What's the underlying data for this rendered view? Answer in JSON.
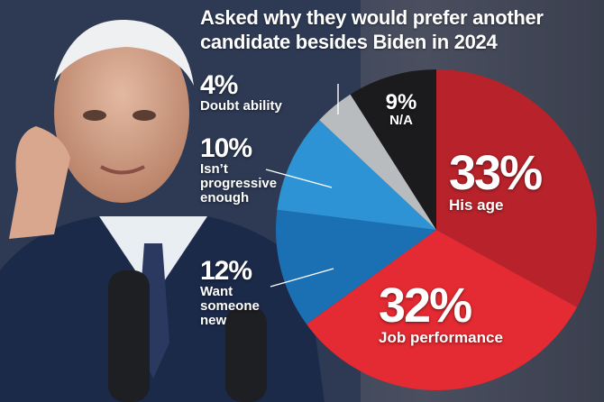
{
  "title": "Asked why they would prefer another candidate besides Biden in 2024",
  "colors": {
    "his_age": "#b8222a",
    "job_performance": "#e42a32",
    "want_someone_new": "#1b6fb3",
    "isnt_progressive": "#2d93d4",
    "doubt_ability": "#b9bcbf",
    "na": "#1b1b1d"
  },
  "chart_data": {
    "type": "pie",
    "title": "Asked why they would prefer another candidate besides Biden in 2024",
    "slices": [
      {
        "label": "His age",
        "value": 33,
        "pct_text": "33%",
        "color": "#b8222a"
      },
      {
        "label": "Job performance",
        "value": 32,
        "pct_text": "32%",
        "color": "#e42a32"
      },
      {
        "label": "Want someone new",
        "value": 12,
        "pct_text": "12%",
        "color": "#1b6fb3"
      },
      {
        "label": "Isn’t progressive enough",
        "value": 10,
        "pct_text": "10%",
        "color": "#2d93d4"
      },
      {
        "label": "Doubt ability",
        "value": 4,
        "pct_text": "4%",
        "color": "#b9bcbf"
      },
      {
        "label": "N/A",
        "value": 9,
        "pct_text": "9%",
        "color": "#1b1b1d"
      }
    ]
  },
  "labels": {
    "doubt": {
      "pct": "4%",
      "line1": "Doubt ability"
    },
    "prog": {
      "pct": "10%",
      "line1": "Isn’t",
      "line2": "progressive",
      "line3": "enough"
    },
    "new": {
      "pct": "12%",
      "line1": "Want",
      "line2": "someone",
      "line3": "new"
    },
    "na": {
      "pct": "9%",
      "line1": "N/A"
    },
    "age": {
      "pct": "33%",
      "line1": "His age"
    },
    "job": {
      "pct": "32%",
      "line1": "Job performance"
    }
  }
}
